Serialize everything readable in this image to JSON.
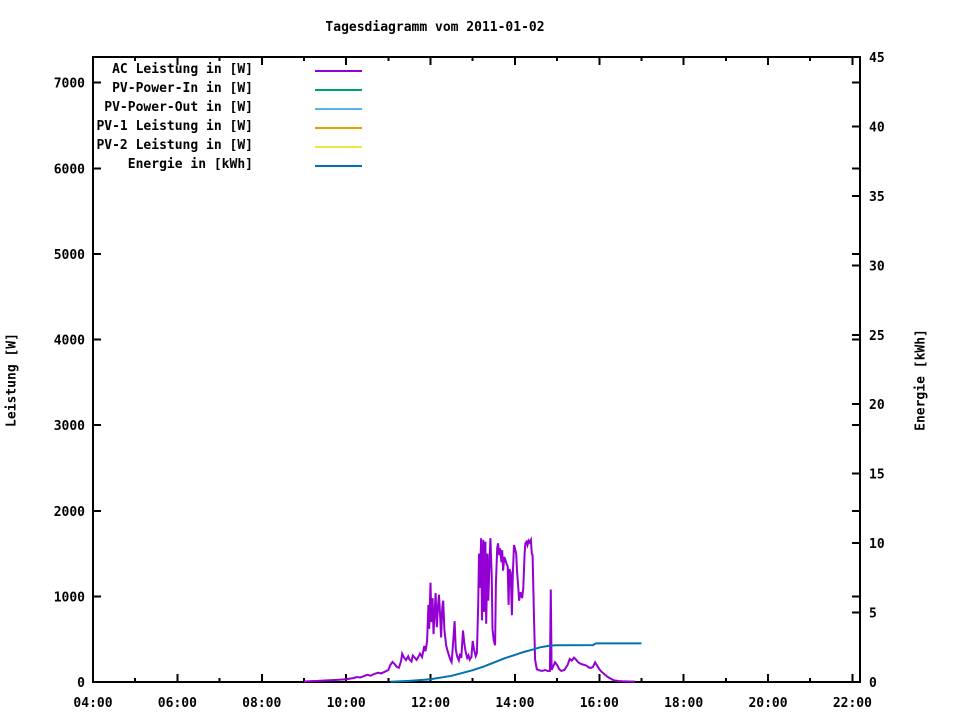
{
  "title": "Tagesdiagramm vom 2011-01-02",
  "chart_data": {
    "type": "line",
    "title": "Tagesdiagramm vom 2011-01-02",
    "ylabel_left": "Leistung [W]",
    "ylabel_right": "Energie [kWh]",
    "x_range_hours": [
      4.0,
      22.18
    ],
    "ylim_left": [
      0,
      7300
    ],
    "ylim_right": [
      0,
      45
    ],
    "grid": "off",
    "legend_position": "top-left-inside",
    "x_major_ticks": [
      {
        "hour": 4,
        "label": "04:00"
      },
      {
        "hour": 6,
        "label": "06:00"
      },
      {
        "hour": 8,
        "label": "08:00"
      },
      {
        "hour": 10,
        "label": "10:00"
      },
      {
        "hour": 12,
        "label": "12:00"
      },
      {
        "hour": 14,
        "label": "14:00"
      },
      {
        "hour": 16,
        "label": "16:00"
      },
      {
        "hour": 18,
        "label": "18:00"
      },
      {
        "hour": 20,
        "label": "20:00"
      },
      {
        "hour": 22,
        "label": "22:00"
      }
    ],
    "x_minor_hours": [
      5,
      7,
      9,
      11,
      13,
      15,
      17,
      19,
      21
    ],
    "y_left_ticks": [
      0,
      1000,
      2000,
      3000,
      4000,
      5000,
      6000,
      7000
    ],
    "y_right_ticks": [
      0,
      5,
      10,
      15,
      20,
      25,
      30,
      35,
      40,
      45
    ],
    "series": [
      {
        "name": "AC Leistung in [W]",
        "color": "#9400d3",
        "axis": "left",
        "visible": true,
        "points": [
          [
            9.0,
            5
          ],
          [
            9.17,
            10
          ],
          [
            9.33,
            13
          ],
          [
            9.5,
            18
          ],
          [
            9.67,
            22
          ],
          [
            9.83,
            26
          ],
          [
            10.0,
            33
          ],
          [
            10.17,
            45
          ],
          [
            10.25,
            58
          ],
          [
            10.33,
            52
          ],
          [
            10.42,
            68
          ],
          [
            10.5,
            84
          ],
          [
            10.58,
            74
          ],
          [
            10.67,
            95
          ],
          [
            10.75,
            108
          ],
          [
            10.83,
            100
          ],
          [
            10.92,
            120
          ],
          [
            11.0,
            140
          ],
          [
            11.05,
            200
          ],
          [
            11.1,
            235
          ],
          [
            11.15,
            208
          ],
          [
            11.2,
            176
          ],
          [
            11.25,
            166
          ],
          [
            11.3,
            242
          ],
          [
            11.33,
            330
          ],
          [
            11.37,
            288
          ],
          [
            11.42,
            256
          ],
          [
            11.47,
            300
          ],
          [
            11.5,
            264
          ],
          [
            11.55,
            240
          ],
          [
            11.58,
            310
          ],
          [
            11.63,
            282
          ],
          [
            11.67,
            258
          ],
          [
            11.72,
            300
          ],
          [
            11.75,
            332
          ],
          [
            11.8,
            292
          ],
          [
            11.85,
            420
          ],
          [
            11.88,
            360
          ],
          [
            11.92,
            480
          ],
          [
            11.95,
            900
          ],
          [
            11.97,
            620
          ],
          [
            12.0,
            1160
          ],
          [
            12.02,
            700
          ],
          [
            12.05,
            980
          ],
          [
            12.07,
            560
          ],
          [
            12.1,
            820
          ],
          [
            12.12,
            1040
          ],
          [
            12.15,
            640
          ],
          [
            12.18,
            900
          ],
          [
            12.2,
            1020
          ],
          [
            12.23,
            760
          ],
          [
            12.25,
            520
          ],
          [
            12.28,
            880
          ],
          [
            12.3,
            950
          ],
          [
            12.33,
            610
          ],
          [
            12.37,
            430
          ],
          [
            12.4,
            370
          ],
          [
            12.43,
            320
          ],
          [
            12.47,
            262
          ],
          [
            12.5,
            232
          ],
          [
            12.53,
            420
          ],
          [
            12.57,
            710
          ],
          [
            12.6,
            380
          ],
          [
            12.63,
            300
          ],
          [
            12.67,
            252
          ],
          [
            12.7,
            330
          ],
          [
            12.73,
            282
          ],
          [
            12.77,
            600
          ],
          [
            12.8,
            452
          ],
          [
            12.83,
            362
          ],
          [
            12.87,
            282
          ],
          [
            12.9,
            312
          ],
          [
            12.93,
            262
          ],
          [
            12.97,
            292
          ],
          [
            13.0,
            480
          ],
          [
            13.03,
            382
          ],
          [
            13.07,
            302
          ],
          [
            13.1,
            340
          ],
          [
            13.13,
            900
          ],
          [
            13.15,
            1500
          ],
          [
            13.17,
            1100
          ],
          [
            13.2,
            1680
          ],
          [
            13.22,
            720
          ],
          [
            13.25,
            1660
          ],
          [
            13.27,
            820
          ],
          [
            13.3,
            1640
          ],
          [
            13.32,
            680
          ],
          [
            13.35,
            1500
          ],
          [
            13.37,
            950
          ],
          [
            13.4,
            1420
          ],
          [
            13.42,
            1680
          ],
          [
            13.45,
            1250
          ],
          [
            13.47,
            620
          ],
          [
            13.5,
            480
          ],
          [
            13.53,
            430
          ],
          [
            13.55,
            1150
          ],
          [
            13.58,
            1560
          ],
          [
            13.6,
            1620
          ],
          [
            13.63,
            1480
          ],
          [
            13.65,
            1560
          ],
          [
            13.68,
            1400
          ],
          [
            13.7,
            1540
          ],
          [
            13.72,
            1300
          ],
          [
            13.75,
            1460
          ],
          [
            13.78,
            1420
          ],
          [
            13.8,
            1380
          ],
          [
            13.83,
            1350
          ],
          [
            13.85,
            900
          ],
          [
            13.87,
            1320
          ],
          [
            13.9,
            1280
          ],
          [
            13.93,
            780
          ],
          [
            13.95,
            1250
          ],
          [
            13.98,
            1600
          ],
          [
            14.0,
            1560
          ],
          [
            14.03,
            1500
          ],
          [
            14.05,
            1300
          ],
          [
            14.08,
            1100
          ],
          [
            14.1,
            950
          ],
          [
            14.13,
            1050
          ],
          [
            14.17,
            980
          ],
          [
            14.2,
            1100
          ],
          [
            14.23,
            1500
          ],
          [
            14.25,
            1620
          ],
          [
            14.28,
            1640
          ],
          [
            14.3,
            1600
          ],
          [
            14.33,
            1650
          ],
          [
            14.35,
            1630
          ],
          [
            14.38,
            1660
          ],
          [
            14.4,
            1500
          ],
          [
            14.42,
            1480
          ],
          [
            14.45,
            800
          ],
          [
            14.48,
            260
          ],
          [
            14.52,
            150
          ],
          [
            14.58,
            135
          ],
          [
            14.65,
            130
          ],
          [
            14.72,
            140
          ],
          [
            14.78,
            128
          ],
          [
            14.83,
            130
          ],
          [
            14.85,
            1080
          ],
          [
            14.87,
            140
          ],
          [
            14.95,
            230
          ],
          [
            15.0,
            200
          ],
          [
            15.05,
            150
          ],
          [
            15.1,
            130
          ],
          [
            15.17,
            140
          ],
          [
            15.25,
            200
          ],
          [
            15.3,
            270
          ],
          [
            15.35,
            250
          ],
          [
            15.4,
            285
          ],
          [
            15.45,
            260
          ],
          [
            15.5,
            230
          ],
          [
            15.55,
            215
          ],
          [
            15.6,
            205
          ],
          [
            15.65,
            200
          ],
          [
            15.7,
            190
          ],
          [
            15.75,
            170
          ],
          [
            15.8,
            165
          ],
          [
            15.85,
            175
          ],
          [
            15.9,
            230
          ],
          [
            15.95,
            190
          ],
          [
            16.0,
            150
          ],
          [
            16.05,
            120
          ],
          [
            16.1,
            100
          ],
          [
            16.15,
            80
          ],
          [
            16.2,
            60
          ],
          [
            16.25,
            45
          ],
          [
            16.3,
            30
          ],
          [
            16.35,
            20
          ],
          [
            16.45,
            12
          ],
          [
            16.55,
            8
          ],
          [
            16.7,
            6
          ],
          [
            16.85,
            5
          ]
        ]
      },
      {
        "name": "PV-Power-In in [W]",
        "color": "#009e73",
        "axis": "left",
        "visible": false,
        "points": []
      },
      {
        "name": "PV-Power-Out in [W]",
        "color": "#56b4e9",
        "axis": "left",
        "visible": false,
        "points": []
      },
      {
        "name": "PV-1 Leistung in [W]",
        "color": "#e69f00",
        "axis": "left",
        "visible": false,
        "points": []
      },
      {
        "name": "PV-2 Leistung in [W]",
        "color": "#f0e442",
        "axis": "left",
        "visible": false,
        "points": []
      },
      {
        "name": "Energie in [kWh]",
        "color": "#0072b2",
        "axis": "right",
        "visible": true,
        "points": [
          [
            11.05,
            0.02
          ],
          [
            11.5,
            0.08
          ],
          [
            12.0,
            0.2
          ],
          [
            12.5,
            0.45
          ],
          [
            13.0,
            0.85
          ],
          [
            13.25,
            1.1
          ],
          [
            13.5,
            1.4
          ],
          [
            13.75,
            1.7
          ],
          [
            14.0,
            1.95
          ],
          [
            14.2,
            2.15
          ],
          [
            14.4,
            2.32
          ],
          [
            14.6,
            2.5
          ],
          [
            14.8,
            2.6
          ],
          [
            14.95,
            2.64
          ],
          [
            15.85,
            2.66
          ],
          [
            15.92,
            2.78
          ],
          [
            17.0,
            2.78
          ]
        ]
      }
    ]
  }
}
